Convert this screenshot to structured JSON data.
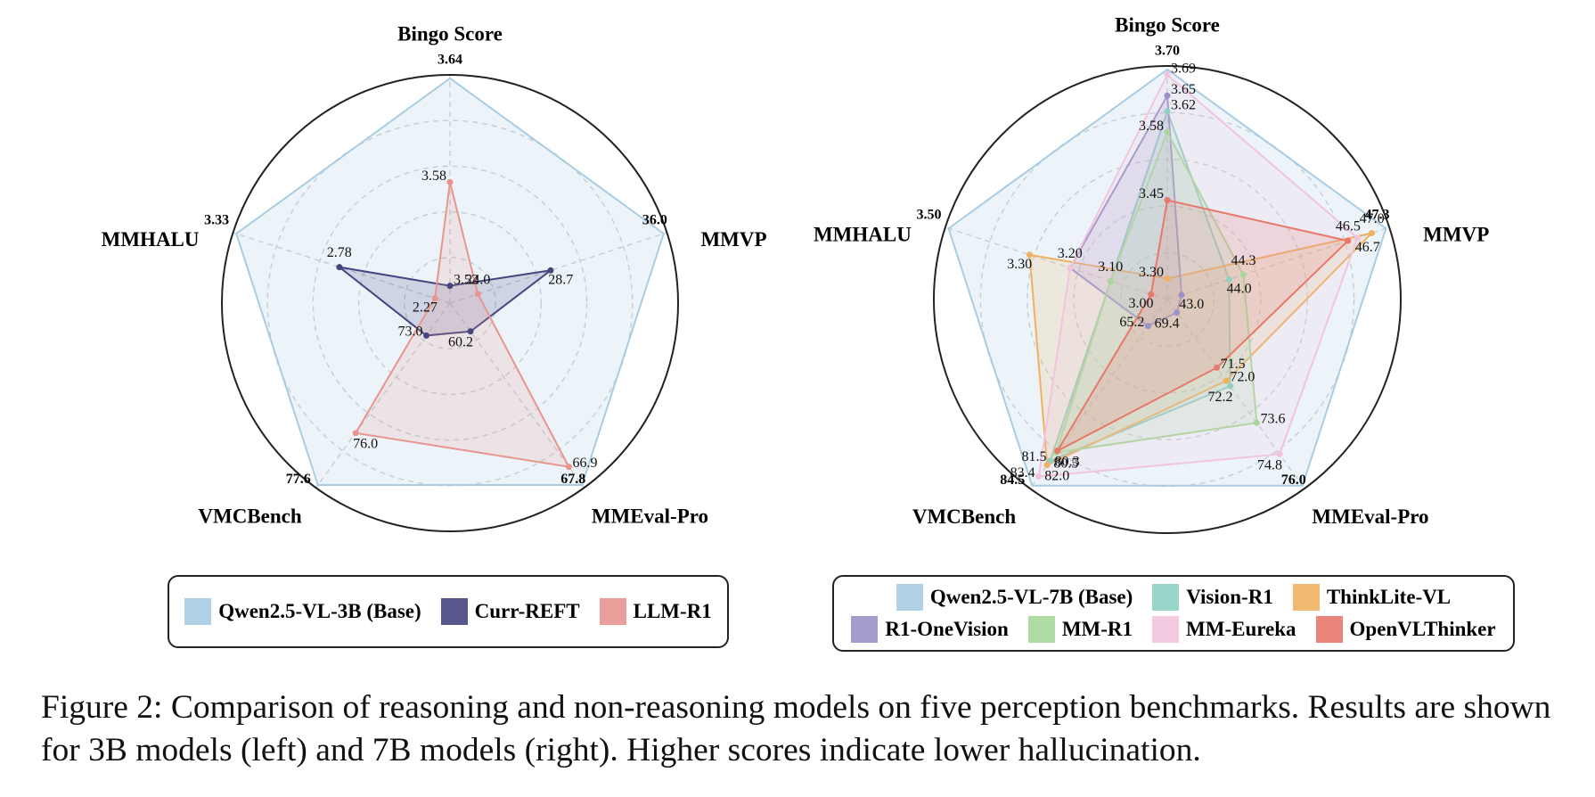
{
  "chart_data": [
    {
      "type": "radar",
      "axes": [
        "Bingo Score",
        "MMVP",
        "MMEval-Pro",
        "VMCBench",
        "MMHALU"
      ],
      "ranges": [
        [
          3.51,
          3.64
        ],
        [
          22.2,
          36
        ],
        [
          58.8,
          67.8
        ],
        [
          72,
          77.6
        ],
        [
          2.19,
          3.33
        ]
      ],
      "series": [
        {
          "name": "Qwen2.5-VL-3B (Base)",
          "color": "#a9cce3",
          "values": [
            3.64,
            36,
            67.8,
            77.6,
            3.33
          ],
          "value_labels": [
            "3.64",
            "36.0",
            "67.8",
            "77.6",
            "3.33"
          ]
        },
        {
          "name": "Curr-REFT",
          "color": "#46457f",
          "values": [
            3.52,
            28.7,
            60.2,
            73,
            2.78
          ],
          "value_labels": [
            "3.52",
            "28.7",
            "60.2",
            "73.0",
            "2.78"
          ]
        },
        {
          "name": "LLM-R1",
          "color": "#e9958f",
          "values": [
            3.58,
            24,
            66.9,
            76,
            2.27
          ],
          "value_labels": [
            "3.58",
            "24.0",
            "66.9",
            "76.0",
            "2.27"
          ]
        }
      ]
    },
    {
      "type": "radar",
      "axes": [
        "Bingo Score",
        "MMVP",
        "MMEval-Pro",
        "VMCBench",
        "MMHALU"
      ],
      "ranges": [
        [
          3.26,
          3.7
        ],
        [
          42.7,
          47.3
        ],
        [
          68.9,
          76
        ],
        [
          62,
          84.5
        ],
        [
          2.96,
          3.5
        ]
      ],
      "series": [
        {
          "name": "Qwen2.5-VL-7B (Base)",
          "color": "#a9cce3",
          "values": [
            3.7,
            47.3,
            76,
            84.5,
            3.5
          ],
          "value_labels": [
            "3.70",
            "47.3",
            "76.0",
            "84.5",
            "3.50"
          ]
        },
        {
          "name": "Vision-R1",
          "color": "#8fd0c3",
          "values": [
            3.62,
            44,
            72.2,
            81.5,
            3.1
          ],
          "value_labels": [
            "3.62",
            "44.0",
            "72.2",
            "81.5",
            "3.10"
          ]
        },
        {
          "name": "ThinkLite-VL",
          "color": "#f0b060",
          "values": [
            3.3,
            47,
            72,
            82,
            3.3
          ],
          "value_labels": [
            "3.30",
            "47.0",
            "72.0",
            "82.0",
            "3.30"
          ]
        },
        {
          "name": "R1-OneVision",
          "color": "#9a92c8",
          "values": [
            3.65,
            43,
            69.4,
            65.2,
            3.2
          ],
          "value_labels": [
            "3.65",
            "43.0",
            "69.4",
            "65.2",
            "3.20"
          ]
        },
        {
          "name": "MM-R1",
          "color": "#a6d89a",
          "values": [
            3.58,
            44.3,
            73.6,
            80.5,
            3.1
          ],
          "value_labels": [
            "3.58",
            "44.3",
            "73.6",
            "80.5",
            null
          ]
        },
        {
          "name": "MM-Eureka",
          "color": "#f2c4dd",
          "values": [
            3.69,
            46.7,
            74.8,
            83.4,
            3.2
          ],
          "value_labels": [
            "3.69",
            "46.7",
            "74.8",
            "83.4",
            null
          ]
        },
        {
          "name": "OpenVLThinker",
          "color": "#e8786a",
          "values": [
            3.45,
            46.5,
            71.5,
            80.3,
            3
          ],
          "value_labels": [
            "3.45",
            "46.5",
            "71.5",
            "80.3",
            "3.00"
          ]
        }
      ]
    }
  ],
  "caption": "Figure 2: Comparison of reasoning and non-reasoning models on five perception benchmarks. Results are shown for 3B models (left) and 7B models (right). Higher scores indicate lower hallucination."
}
